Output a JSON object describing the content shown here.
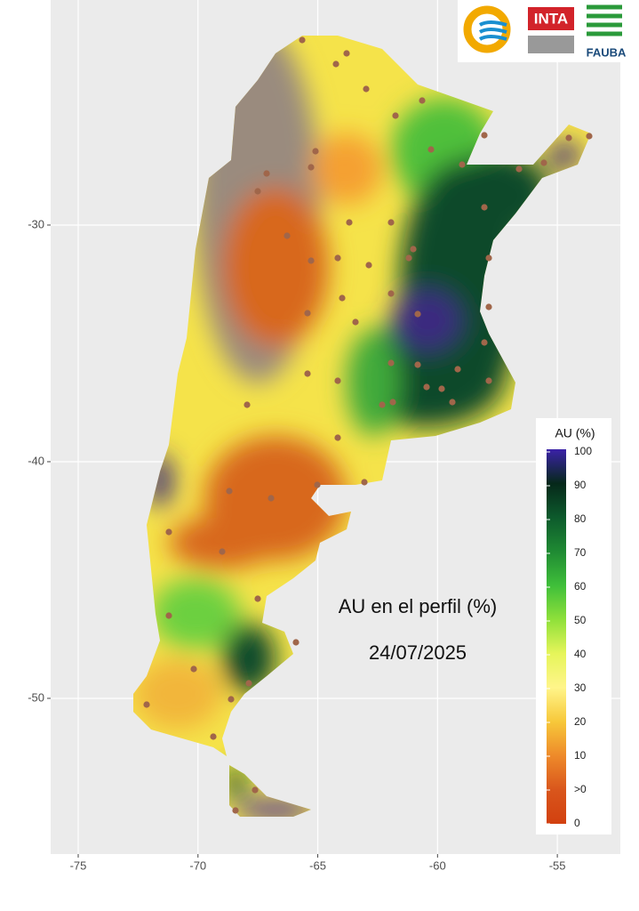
{
  "map": {
    "title": "AU en el perfil (%)",
    "date": "24/07/2025",
    "logos": {
      "inta": "INTA",
      "fauba": "FAUBA"
    },
    "xlim": [
      -76.15,
      -52.37
    ],
    "ylim": [
      -56.58,
      -20.49
    ],
    "xticks": [
      -75,
      -70,
      -65,
      -60,
      -55
    ],
    "yticks": [
      -50,
      -40,
      -30
    ],
    "grid": true,
    "legend": {
      "title": "AU (%)",
      "labels": [
        100,
        90,
        80,
        70,
        60,
        50,
        40,
        30,
        20,
        10,
        ">0",
        0
      ],
      "colors": [
        "#3b22a8",
        "#06281a",
        "#0d5a2c",
        "#1f8a33",
        "#3fbf3a",
        "#8fe03a",
        "#e6f55a",
        "#fff58a",
        "#f7c83a",
        "#ee8a2a",
        "#d9561c",
        "#d2400f"
      ]
    }
  }
}
